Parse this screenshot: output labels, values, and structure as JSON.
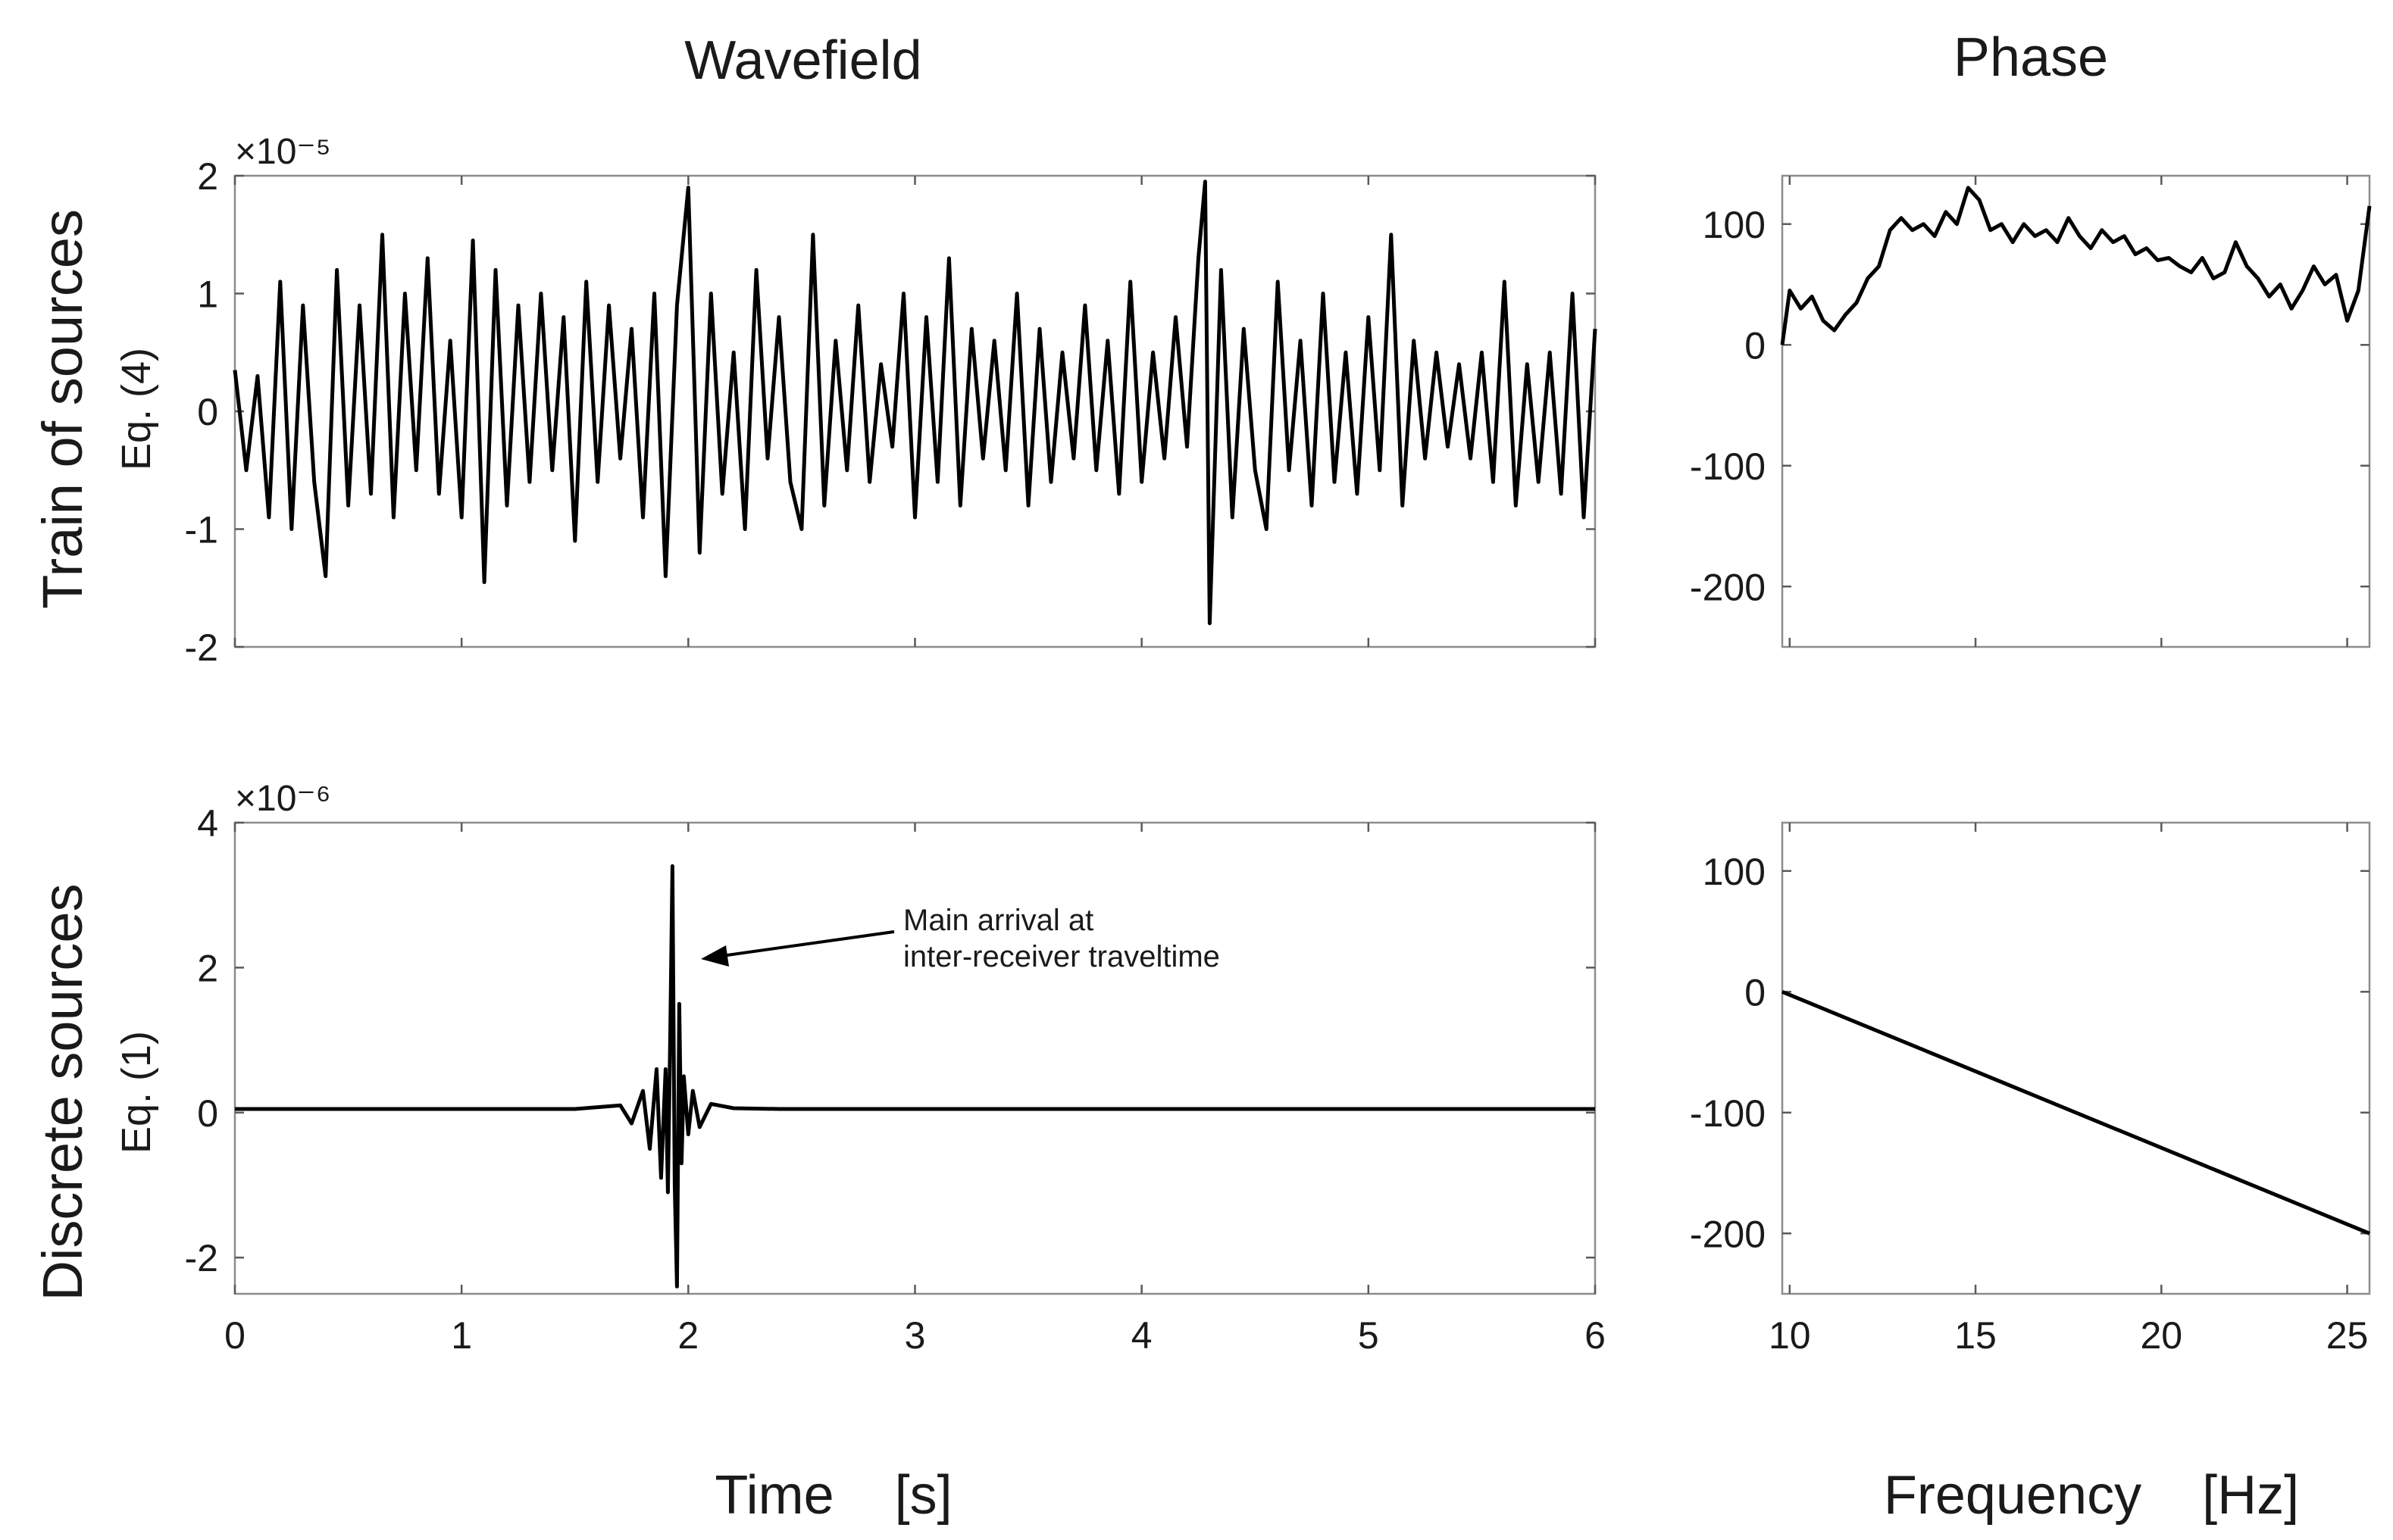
{
  "figure": {
    "col_title_left": "Wavefield",
    "col_title_right": "Phase",
    "row_label_top": "Train of sources",
    "row_label_top_sub": "Eq. (4)",
    "row_label_bottom": "Discrete sources",
    "row_label_bottom_sub": "Eq. (1)",
    "xlabel_left": "Time    [s]",
    "xlabel_right": "Frequency    [Hz]"
  },
  "chart_data": [
    {
      "id": "wavefield-train",
      "type": "line",
      "title": "Wavefield",
      "xlabel": "Time [s]",
      "ylabel": "Train of sources Eq. (4)",
      "exponent_label": "×10⁻⁵",
      "xlim": [
        0,
        6
      ],
      "ylim": [
        -2,
        2
      ],
      "xticks": [
        0,
        1,
        2,
        3,
        4,
        5,
        6
      ],
      "yticks": [
        -2,
        -1,
        0,
        1,
        2
      ],
      "series": [
        {
          "name": "train of sources",
          "x": [
            0,
            0.05,
            0.1,
            0.15,
            0.2,
            0.25,
            0.3,
            0.35,
            0.4,
            0.45,
            0.5,
            0.55,
            0.6,
            0.65,
            0.7,
            0.75,
            0.8,
            0.85,
            0.9,
            0.95,
            1.0,
            1.05,
            1.1,
            1.15,
            1.2,
            1.25,
            1.3,
            1.35,
            1.4,
            1.45,
            1.5,
            1.55,
            1.6,
            1.65,
            1.7,
            1.75,
            1.8,
            1.85,
            1.9,
            1.95,
            2.0,
            2.05,
            2.1,
            2.15,
            2.2,
            2.25,
            2.3,
            2.35,
            2.4,
            2.45,
            2.5,
            2.55,
            2.6,
            2.65,
            2.7,
            2.75,
            2.8,
            2.85,
            2.9,
            2.95,
            3.0,
            3.05,
            3.1,
            3.15,
            3.2,
            3.25,
            3.3,
            3.35,
            3.4,
            3.45,
            3.5,
            3.55,
            3.6,
            3.65,
            3.7,
            3.75,
            3.8,
            3.85,
            3.9,
            3.95,
            4.0,
            4.05,
            4.1,
            4.15,
            4.2,
            4.25,
            4.28,
            4.3,
            4.35,
            4.4,
            4.45,
            4.5,
            4.55,
            4.6,
            4.65,
            4.7,
            4.75,
            4.8,
            4.85,
            4.9,
            4.95,
            5.0,
            5.05,
            5.1,
            5.15,
            5.2,
            5.25,
            5.3,
            5.35,
            5.4,
            5.45,
            5.5,
            5.55,
            5.6,
            5.65,
            5.7,
            5.75,
            5.8,
            5.85,
            5.9,
            5.95,
            6.0
          ],
          "y": [
            0.35,
            -0.5,
            0.3,
            -0.9,
            1.1,
            -1.0,
            0.9,
            -0.6,
            -1.4,
            1.2,
            -0.8,
            0.9,
            -0.7,
            1.5,
            -0.9,
            1.0,
            -0.5,
            1.3,
            -0.7,
            0.6,
            -0.9,
            1.45,
            -1.45,
            1.2,
            -0.8,
            0.9,
            -0.6,
            1.0,
            -0.5,
            0.8,
            -1.1,
            1.1,
            -0.6,
            0.9,
            -0.4,
            0.7,
            -0.9,
            1.0,
            -1.4,
            0.9,
            1.9,
            -1.2,
            1.0,
            -0.7,
            0.5,
            -1.0,
            1.2,
            -0.4,
            0.8,
            -0.6,
            -1.0,
            1.5,
            -0.8,
            0.6,
            -0.5,
            0.9,
            -0.6,
            0.4,
            -0.3,
            1.0,
            -0.9,
            0.8,
            -0.6,
            1.3,
            -0.8,
            0.7,
            -0.4,
            0.6,
            -0.5,
            1.0,
            -0.8,
            0.7,
            -0.6,
            0.5,
            -0.4,
            0.9,
            -0.5,
            0.6,
            -0.7,
            1.1,
            -0.6,
            0.5,
            -0.4,
            0.8,
            -0.3,
            1.3,
            1.95,
            -1.8,
            1.2,
            -0.9,
            0.7,
            -0.5,
            -1.0,
            1.1,
            -0.5,
            0.6,
            -0.8,
            1.0,
            -0.6,
            0.5,
            -0.7,
            0.8,
            -0.5,
            1.5,
            -0.8,
            0.6,
            -0.4,
            0.5,
            -0.3,
            0.4,
            -0.4,
            0.5,
            -0.6,
            1.1,
            -0.8,
            0.4,
            -0.6,
            0.5,
            -0.7,
            1.0,
            -0.9,
            0.7
          ]
        }
      ]
    },
    {
      "id": "wavefield-discrete",
      "type": "line",
      "xlabel": "Time [s]",
      "ylabel": "Discrete sources Eq. (1)",
      "exponent_label": "×10⁻⁶",
      "xlim": [
        0,
        6
      ],
      "ylim": [
        -2.5,
        4
      ],
      "xticks": [
        0,
        1,
        2,
        3,
        4,
        5,
        6
      ],
      "yticks": [
        -2,
        0,
        2,
        4
      ],
      "annotation": {
        "text_line1": "Main arrival at",
        "text_line2": "inter-receiver traveltime",
        "arrow_to_x": 2.05,
        "arrow_to_y": 2.2
      },
      "series": [
        {
          "name": "discrete sources",
          "x": [
            0,
            1.0,
            1.5,
            1.7,
            1.75,
            1.8,
            1.83,
            1.86,
            1.88,
            1.9,
            1.91,
            1.92,
            1.93,
            1.94,
            1.95,
            1.96,
            1.97,
            1.98,
            2.0,
            2.02,
            2.05,
            2.1,
            2.2,
            2.4,
            3.0,
            6.0
          ],
          "y": [
            0.05,
            0.05,
            0.05,
            0.1,
            -0.15,
            0.3,
            -0.5,
            0.6,
            -0.9,
            0.6,
            -1.1,
            1.0,
            3.4,
            -1.0,
            -2.4,
            1.5,
            -0.7,
            0.5,
            -0.3,
            0.3,
            -0.2,
            0.12,
            0.06,
            0.05,
            0.05,
            0.05
          ]
        }
      ]
    },
    {
      "id": "phase-train",
      "type": "line",
      "title": "Phase",
      "xlabel": "Frequency [Hz]",
      "xlim": [
        9.8,
        25.6
      ],
      "ylim": [
        -250,
        140
      ],
      "xticks": [
        10,
        15,
        20,
        25
      ],
      "yticks": [
        -200,
        -100,
        0,
        100
      ],
      "series": [
        {
          "name": "phase, train of sources",
          "x": [
            9.8,
            10.0,
            10.3,
            10.6,
            10.9,
            11.2,
            11.5,
            11.8,
            12.1,
            12.4,
            12.7,
            13.0,
            13.3,
            13.6,
            13.9,
            14.2,
            14.5,
            14.8,
            15.1,
            15.4,
            15.7,
            16.0,
            16.3,
            16.6,
            16.9,
            17.2,
            17.5,
            17.8,
            18.1,
            18.4,
            18.7,
            19.0,
            19.3,
            19.6,
            19.9,
            20.2,
            20.5,
            20.8,
            21.1,
            21.4,
            21.7,
            22.0,
            22.3,
            22.6,
            22.9,
            23.2,
            23.5,
            23.8,
            24.1,
            24.4,
            24.7,
            25.0,
            25.3,
            25.6
          ],
          "y": [
            0,
            45,
            30,
            40,
            20,
            12,
            25,
            35,
            55,
            65,
            95,
            105,
            95,
            100,
            90,
            110,
            100,
            130,
            120,
            95,
            100,
            85,
            100,
            90,
            95,
            85,
            105,
            90,
            80,
            95,
            85,
            90,
            75,
            80,
            70,
            72,
            65,
            60,
            72,
            55,
            60,
            85,
            65,
            55,
            40,
            50,
            30,
            45,
            65,
            50,
            58,
            20,
            45,
            115
          ]
        }
      ]
    },
    {
      "id": "phase-discrete",
      "type": "line",
      "xlabel": "Frequency [Hz]",
      "xlim": [
        9.8,
        25.6
      ],
      "ylim": [
        -250,
        140
      ],
      "xticks": [
        10,
        15,
        20,
        25
      ],
      "yticks": [
        -200,
        -100,
        0,
        100
      ],
      "series": [
        {
          "name": "phase, discrete sources",
          "x": [
            9.8,
            25.6
          ],
          "y": [
            0,
            -200
          ]
        }
      ]
    }
  ]
}
